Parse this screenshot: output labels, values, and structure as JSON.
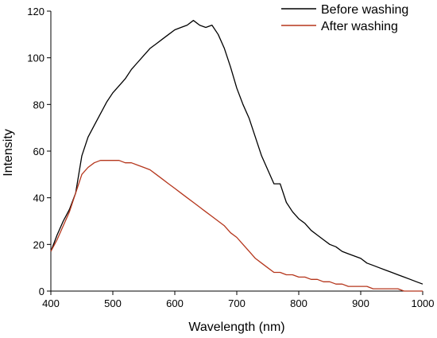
{
  "chart_data": {
    "type": "line",
    "xlabel": "Wavelength (nm)",
    "ylabel": "Intensity",
    "xlim": [
      400,
      1000
    ],
    "ylim": [
      0,
      120
    ],
    "xticks": [
      400,
      500,
      600,
      700,
      800,
      900,
      1000
    ],
    "yticks": [
      0,
      20,
      40,
      60,
      80,
      100,
      120
    ],
    "grid": false,
    "legend_position": "top-right",
    "series": [
      {
        "name": "Before washing",
        "color": "#000000",
        "points": [
          [
            400,
            17
          ],
          [
            410,
            24
          ],
          [
            420,
            30
          ],
          [
            430,
            35
          ],
          [
            440,
            42
          ],
          [
            450,
            58
          ],
          [
            460,
            66
          ],
          [
            470,
            71
          ],
          [
            480,
            76
          ],
          [
            490,
            81
          ],
          [
            500,
            85
          ],
          [
            510,
            88
          ],
          [
            520,
            91
          ],
          [
            530,
            95
          ],
          [
            540,
            98
          ],
          [
            550,
            101
          ],
          [
            560,
            104
          ],
          [
            570,
            106
          ],
          [
            580,
            108
          ],
          [
            590,
            110
          ],
          [
            600,
            112
          ],
          [
            610,
            113
          ],
          [
            620,
            114
          ],
          [
            630,
            116
          ],
          [
            640,
            114
          ],
          [
            650,
            113
          ],
          [
            660,
            114
          ],
          [
            670,
            110
          ],
          [
            680,
            104
          ],
          [
            690,
            96
          ],
          [
            700,
            87
          ],
          [
            710,
            80
          ],
          [
            720,
            74
          ],
          [
            730,
            66
          ],
          [
            740,
            58
          ],
          [
            750,
            52
          ],
          [
            760,
            46
          ],
          [
            770,
            46
          ],
          [
            780,
            38
          ],
          [
            790,
            34
          ],
          [
            800,
            31
          ],
          [
            810,
            29
          ],
          [
            820,
            26
          ],
          [
            830,
            24
          ],
          [
            840,
            22
          ],
          [
            850,
            20
          ],
          [
            860,
            19
          ],
          [
            870,
            17
          ],
          [
            880,
            16
          ],
          [
            890,
            15
          ],
          [
            900,
            14
          ],
          [
            910,
            12
          ],
          [
            920,
            11
          ],
          [
            930,
            10
          ],
          [
            940,
            9
          ],
          [
            950,
            8
          ],
          [
            960,
            7
          ],
          [
            970,
            6
          ],
          [
            980,
            5
          ],
          [
            990,
            4
          ],
          [
            1000,
            3
          ]
        ]
      },
      {
        "name": "After washing",
        "color": "#b5361c",
        "points": [
          [
            400,
            17
          ],
          [
            410,
            22
          ],
          [
            420,
            28
          ],
          [
            430,
            34
          ],
          [
            440,
            42
          ],
          [
            450,
            50
          ],
          [
            460,
            53
          ],
          [
            470,
            55
          ],
          [
            480,
            56
          ],
          [
            490,
            56
          ],
          [
            500,
            56
          ],
          [
            510,
            56
          ],
          [
            520,
            55
          ],
          [
            530,
            55
          ],
          [
            540,
            54
          ],
          [
            550,
            53
          ],
          [
            560,
            52
          ],
          [
            570,
            50
          ],
          [
            580,
            48
          ],
          [
            590,
            46
          ],
          [
            600,
            44
          ],
          [
            610,
            42
          ],
          [
            620,
            40
          ],
          [
            630,
            38
          ],
          [
            640,
            36
          ],
          [
            650,
            34
          ],
          [
            660,
            32
          ],
          [
            670,
            30
          ],
          [
            680,
            28
          ],
          [
            690,
            25
          ],
          [
            700,
            23
          ],
          [
            710,
            20
          ],
          [
            720,
            17
          ],
          [
            730,
            14
          ],
          [
            740,
            12
          ],
          [
            750,
            10
          ],
          [
            760,
            8
          ],
          [
            770,
            8
          ],
          [
            780,
            7
          ],
          [
            790,
            7
          ],
          [
            800,
            6
          ],
          [
            810,
            6
          ],
          [
            820,
            5
          ],
          [
            830,
            5
          ],
          [
            840,
            4
          ],
          [
            850,
            4
          ],
          [
            860,
            3
          ],
          [
            870,
            3
          ],
          [
            880,
            2
          ],
          [
            890,
            2
          ],
          [
            900,
            2
          ],
          [
            910,
            2
          ],
          [
            920,
            1
          ],
          [
            930,
            1
          ],
          [
            940,
            1
          ],
          [
            950,
            1
          ],
          [
            960,
            1
          ],
          [
            970,
            0
          ],
          [
            980,
            0
          ],
          [
            990,
            0
          ],
          [
            1000,
            0
          ]
        ]
      }
    ]
  }
}
